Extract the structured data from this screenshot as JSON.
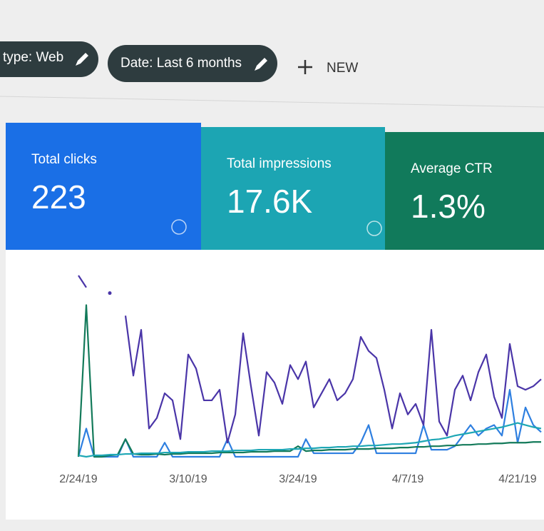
{
  "filters": [
    {
      "label": "type: Web"
    },
    {
      "label": "Date: Last 6 months"
    }
  ],
  "new_button": "NEW",
  "metrics": [
    {
      "label": "Total clicks",
      "value": "223",
      "color": "#1a6fe6"
    },
    {
      "label": "Total impressions",
      "value": "17.6K",
      "color": "#1ca5b3"
    },
    {
      "label": "Average CTR",
      "value": "1.3%",
      "color": "#117a5b"
    }
  ],
  "chart_data": {
    "type": "line",
    "x": [
      "2/24/19",
      null,
      null,
      null,
      null,
      null,
      null,
      null,
      null,
      null,
      null,
      null,
      null,
      null,
      "3/10/19",
      null,
      null,
      null,
      null,
      null,
      null,
      null,
      null,
      null,
      null,
      null,
      null,
      null,
      "3/24/19",
      null,
      null,
      null,
      null,
      null,
      null,
      null,
      null,
      null,
      null,
      null,
      null,
      null,
      "4/7/19",
      null,
      null,
      null,
      null,
      null,
      null,
      null,
      null,
      null,
      null,
      null,
      null,
      null,
      "4/21/19",
      null,
      null,
      null
    ],
    "ylim": [
      0,
      260
    ],
    "series": [
      {
        "color": "#4a35a8",
        "values": [
          257,
          240,
          null,
          null,
          232,
          null,
          200,
          115,
          180,
          40,
          55,
          90,
          80,
          25,
          145,
          125,
          80,
          80,
          95,
          20,
          60,
          175,
          100,
          30,
          120,
          105,
          75,
          130,
          110,
          135,
          70,
          90,
          110,
          80,
          90,
          110,
          170,
          150,
          140,
          95,
          40,
          90,
          60,
          75,
          45,
          180,
          50,
          30,
          95,
          115,
          80,
          120,
          145,
          85,
          55,
          160,
          100,
          95,
          100,
          110
        ]
      },
      {
        "color": "#1ea7b5",
        "values": [
          2,
          0,
          2,
          2,
          3,
          3,
          4,
          4,
          5,
          5,
          5,
          6,
          6,
          6,
          7,
          7,
          7,
          8,
          8,
          8,
          9,
          9,
          9,
          10,
          10,
          10,
          10,
          11,
          11,
          12,
          12,
          13,
          13,
          14,
          14,
          15,
          15,
          16,
          16,
          17,
          18,
          18,
          19,
          20,
          22,
          24,
          25,
          27,
          30,
          32,
          34,
          36,
          38,
          40,
          42,
          45,
          48,
          45,
          42,
          40
        ]
      },
      {
        "color": "#137a5a",
        "values": [
          0,
          215,
          0,
          0,
          2,
          3,
          25,
          4,
          3,
          3,
          4,
          3,
          4,
          4,
          5,
          5,
          5,
          5,
          6,
          6,
          6,
          6,
          7,
          7,
          7,
          8,
          8,
          8,
          15,
          8,
          9,
          9,
          10,
          10,
          10,
          11,
          11,
          11,
          12,
          12,
          12,
          13,
          13,
          14,
          14,
          15,
          15,
          16,
          16,
          17,
          17,
          18,
          18,
          19,
          19,
          20,
          20,
          20,
          21,
          21
        ]
      },
      {
        "color": "#2e7fe0",
        "values": [
          0,
          40,
          0,
          0,
          0,
          0,
          25,
          0,
          0,
          0,
          0,
          20,
          0,
          0,
          0,
          0,
          0,
          0,
          0,
          25,
          0,
          0,
          0,
          0,
          0,
          0,
          0,
          0,
          0,
          25,
          5,
          5,
          5,
          5,
          5,
          5,
          20,
          45,
          5,
          5,
          5,
          5,
          5,
          5,
          45,
          10,
          10,
          10,
          15,
          30,
          45,
          30,
          40,
          45,
          30,
          95,
          20,
          70,
          45,
          35
        ]
      }
    ]
  }
}
